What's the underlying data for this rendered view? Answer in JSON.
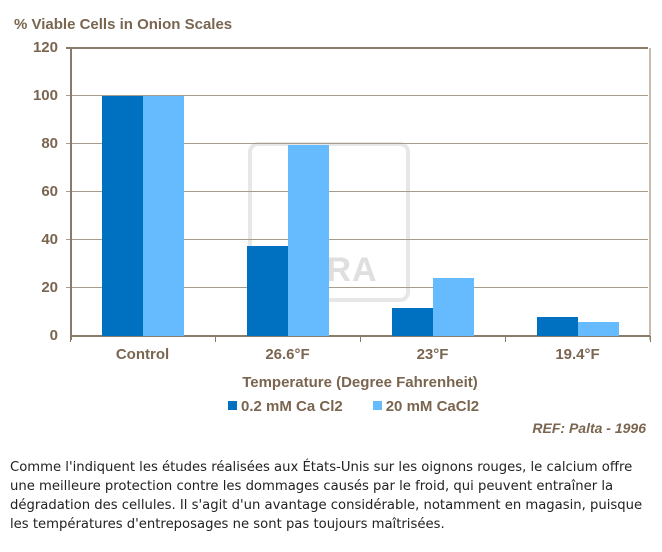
{
  "chart_data": {
    "type": "bar",
    "title": "% Viable Cells in Onion Scales",
    "xlabel": "Temperature (Degree Fahrenheit)",
    "ylabel": "% Viable Cells in Onion Scales",
    "ylim": [
      0,
      120
    ],
    "yticks": [
      0,
      20,
      40,
      60,
      80,
      100,
      120
    ],
    "categories": [
      "Control",
      "26.6°F",
      "23°F",
      "19.4°F"
    ],
    "series": [
      {
        "name": "0.2 mM Ca Cl2",
        "color": "#0070c0",
        "values": [
          100,
          37.5,
          11.5,
          8
        ]
      },
      {
        "name": "20 mM CaCl2",
        "color": "#66bbff",
        "values": [
          100,
          79.5,
          24,
          6
        ]
      }
    ],
    "grid": true,
    "legend_position": "bottom",
    "annotation": "REF: Palta - 1996",
    "watermark": "YARA"
  },
  "text": {
    "title": "% Viable Cells in Onion Scales",
    "xtitle": "Temperature (Degree Fahrenheit)",
    "ref": "REF: Palta - 1996",
    "watermark": "YARA",
    "paragraph": "Comme l'indiquent les études réalisées aux États-Unis sur les oignons rouges, le calcium offre une meilleure protection contre les dommages causés par le froid, qui peuvent entraîner la dégradation des cellules. Il s'agit d'un avantage considérable, notamment en magasin, puisque les températures d'entreposages ne sont pas toujours maîtrisées."
  }
}
